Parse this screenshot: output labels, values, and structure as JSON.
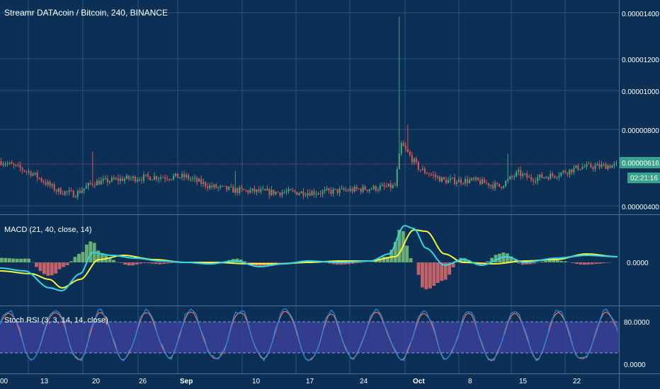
{
  "colors": {
    "background": "#0b2f55",
    "grid": "#2a5478",
    "candle_up": "#4aa37a",
    "candle_down": "#e0504f",
    "current_line": "#e0504f",
    "price_badge": "#39a28a",
    "macd_line": "#2fd8e8",
    "signal_line": "#f5f53a",
    "hist_pos": "#7ac27a",
    "hist_neg": "#e06b6b",
    "rsi_k": "#1e88e5",
    "rsi_d": "#f06a4a",
    "rsi_band": "#3a3f98"
  },
  "main": {
    "title": "Streamr DATAcoin / Bitcoin, 240, BINANCE",
    "price_badge": "0.00000616",
    "time_badge": "02:21:16",
    "price_ticks": [
      "0.00001400",
      "0.00001200",
      "0.00001000",
      "0.00000800",
      "0.00000400"
    ]
  },
  "macd": {
    "title": "MACD (21, 40, close, 14)",
    "tick": "0.0000"
  },
  "rsi": {
    "title": "Stoch RSI (3, 3, 14, 14, close)",
    "ticks": [
      "80.0000",
      "0.0000"
    ]
  },
  "time_axis": {
    "labels": [
      "00",
      "13",
      "20",
      "26",
      "Sep",
      "10",
      "17",
      "24",
      "Oct",
      "8",
      "15",
      "22"
    ]
  },
  "chart_data": {
    "type": "candlestick",
    "title": "Streamr DATAcoin / Bitcoin, 240, BINANCE",
    "ylim": [
      3.5e-06,
      1.43e-05
    ],
    "y_ticks": [
      1.4e-05,
      1.2e-05,
      1e-05,
      8e-06,
      4e-06
    ],
    "current_price": 6.16e-06,
    "x_labels": [
      "00",
      "13",
      "20",
      "26",
      "Sep",
      "10",
      "17",
      "24",
      "Oct",
      "8",
      "15",
      "22"
    ],
    "price_anchors": [
      [
        0.0,
        6.3e-06
      ],
      [
        0.05,
        5.7e-06
      ],
      [
        0.09,
        4.8e-06
      ],
      [
        0.12,
        4.6e-06
      ],
      [
        0.15,
        5.2e-06
      ],
      [
        0.2,
        5.4e-06
      ],
      [
        0.25,
        5.5e-06
      ],
      [
        0.3,
        5.5e-06
      ],
      [
        0.34,
        5e-06
      ],
      [
        0.38,
        4.8e-06
      ],
      [
        0.44,
        4.7e-06
      ],
      [
        0.52,
        4.7e-06
      ],
      [
        0.6,
        4.9e-06
      ],
      [
        0.64,
        5e-06
      ],
      [
        0.65,
        7.2e-06
      ],
      [
        0.68,
        5.9e-06
      ],
      [
        0.72,
        5.3e-06
      ],
      [
        0.77,
        5.3e-06
      ],
      [
        0.81,
        5e-06
      ],
      [
        0.84,
        5.7e-06
      ],
      [
        0.86,
        5.4e-06
      ],
      [
        0.9,
        5.6e-06
      ],
      [
        0.94,
        6e-06
      ],
      [
        1.0,
        6.1e-06
      ]
    ],
    "spikes": [
      {
        "x": 0.648,
        "high": 1.38e-05
      },
      {
        "x": 0.66,
        "high": 8.2e-06
      },
      {
        "x": 0.15,
        "high": 6.8e-06
      },
      {
        "x": 0.38,
        "high": 5.8e-06
      },
      {
        "x": 0.825,
        "high": 6.7e-06
      }
    ],
    "macd_series": {
      "macd": [
        [
          0,
          -0.2
        ],
        [
          0.04,
          -0.3
        ],
        [
          0.08,
          -0.9
        ],
        [
          0.1,
          -1.0
        ],
        [
          0.13,
          -0.4
        ],
        [
          0.15,
          0.35
        ],
        [
          0.18,
          0.25
        ],
        [
          0.22,
          0.15
        ],
        [
          0.26,
          0.05
        ],
        [
          0.3,
          0.0
        ],
        [
          0.34,
          -0.05
        ],
        [
          0.38,
          0.05
        ],
        [
          0.42,
          -0.15
        ],
        [
          0.46,
          -0.05
        ],
        [
          0.5,
          0.05
        ],
        [
          0.55,
          0.0
        ],
        [
          0.6,
          0.05
        ],
        [
          0.63,
          0.3
        ],
        [
          0.655,
          1.3
        ],
        [
          0.67,
          1.2
        ],
        [
          0.69,
          0.5
        ],
        [
          0.72,
          -0.1
        ],
        [
          0.75,
          0.1
        ],
        [
          0.78,
          -0.1
        ],
        [
          0.82,
          0.2
        ],
        [
          0.85,
          0.0
        ],
        [
          0.9,
          0.15
        ],
        [
          0.95,
          0.25
        ],
        [
          1.0,
          0.2
        ]
      ],
      "signal": [
        [
          0,
          -0.3
        ],
        [
          0.05,
          -0.4
        ],
        [
          0.08,
          -0.6
        ],
        [
          0.1,
          -0.9
        ],
        [
          0.13,
          -0.6
        ],
        [
          0.16,
          0.1
        ],
        [
          0.2,
          0.25
        ],
        [
          0.25,
          0.1
        ],
        [
          0.3,
          0.0
        ],
        [
          0.35,
          0.0
        ],
        [
          0.4,
          -0.05
        ],
        [
          0.45,
          -0.05
        ],
        [
          0.5,
          0.0
        ],
        [
          0.55,
          0.05
        ],
        [
          0.6,
          0.05
        ],
        [
          0.64,
          0.2
        ],
        [
          0.67,
          1.15
        ],
        [
          0.69,
          1.1
        ],
        [
          0.72,
          0.3
        ],
        [
          0.75,
          0.0
        ],
        [
          0.8,
          -0.05
        ],
        [
          0.85,
          0.05
        ],
        [
          0.9,
          0.1
        ],
        [
          0.95,
          0.3
        ],
        [
          1.0,
          0.2
        ]
      ]
    },
    "stoch_rsi_range": [
      0,
      100
    ],
    "stoch_rsi_bands": [
      20,
      80
    ]
  }
}
